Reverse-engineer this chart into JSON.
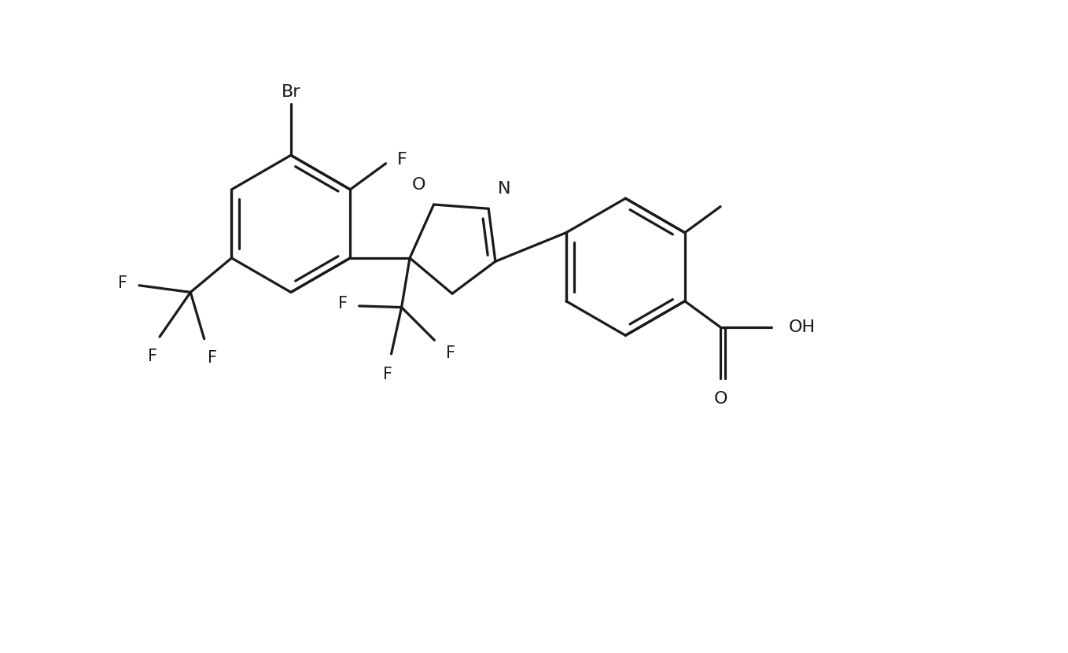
{
  "background_color": "#ffffff",
  "line_color": "#1a1a1a",
  "line_width": 2.3,
  "font_size": 15,
  "figsize": [
    13.58,
    8.3
  ],
  "dpi": 100,
  "xlim": [
    -7.0,
    8.5
  ],
  "ylim": [
    -4.5,
    4.5
  ]
}
